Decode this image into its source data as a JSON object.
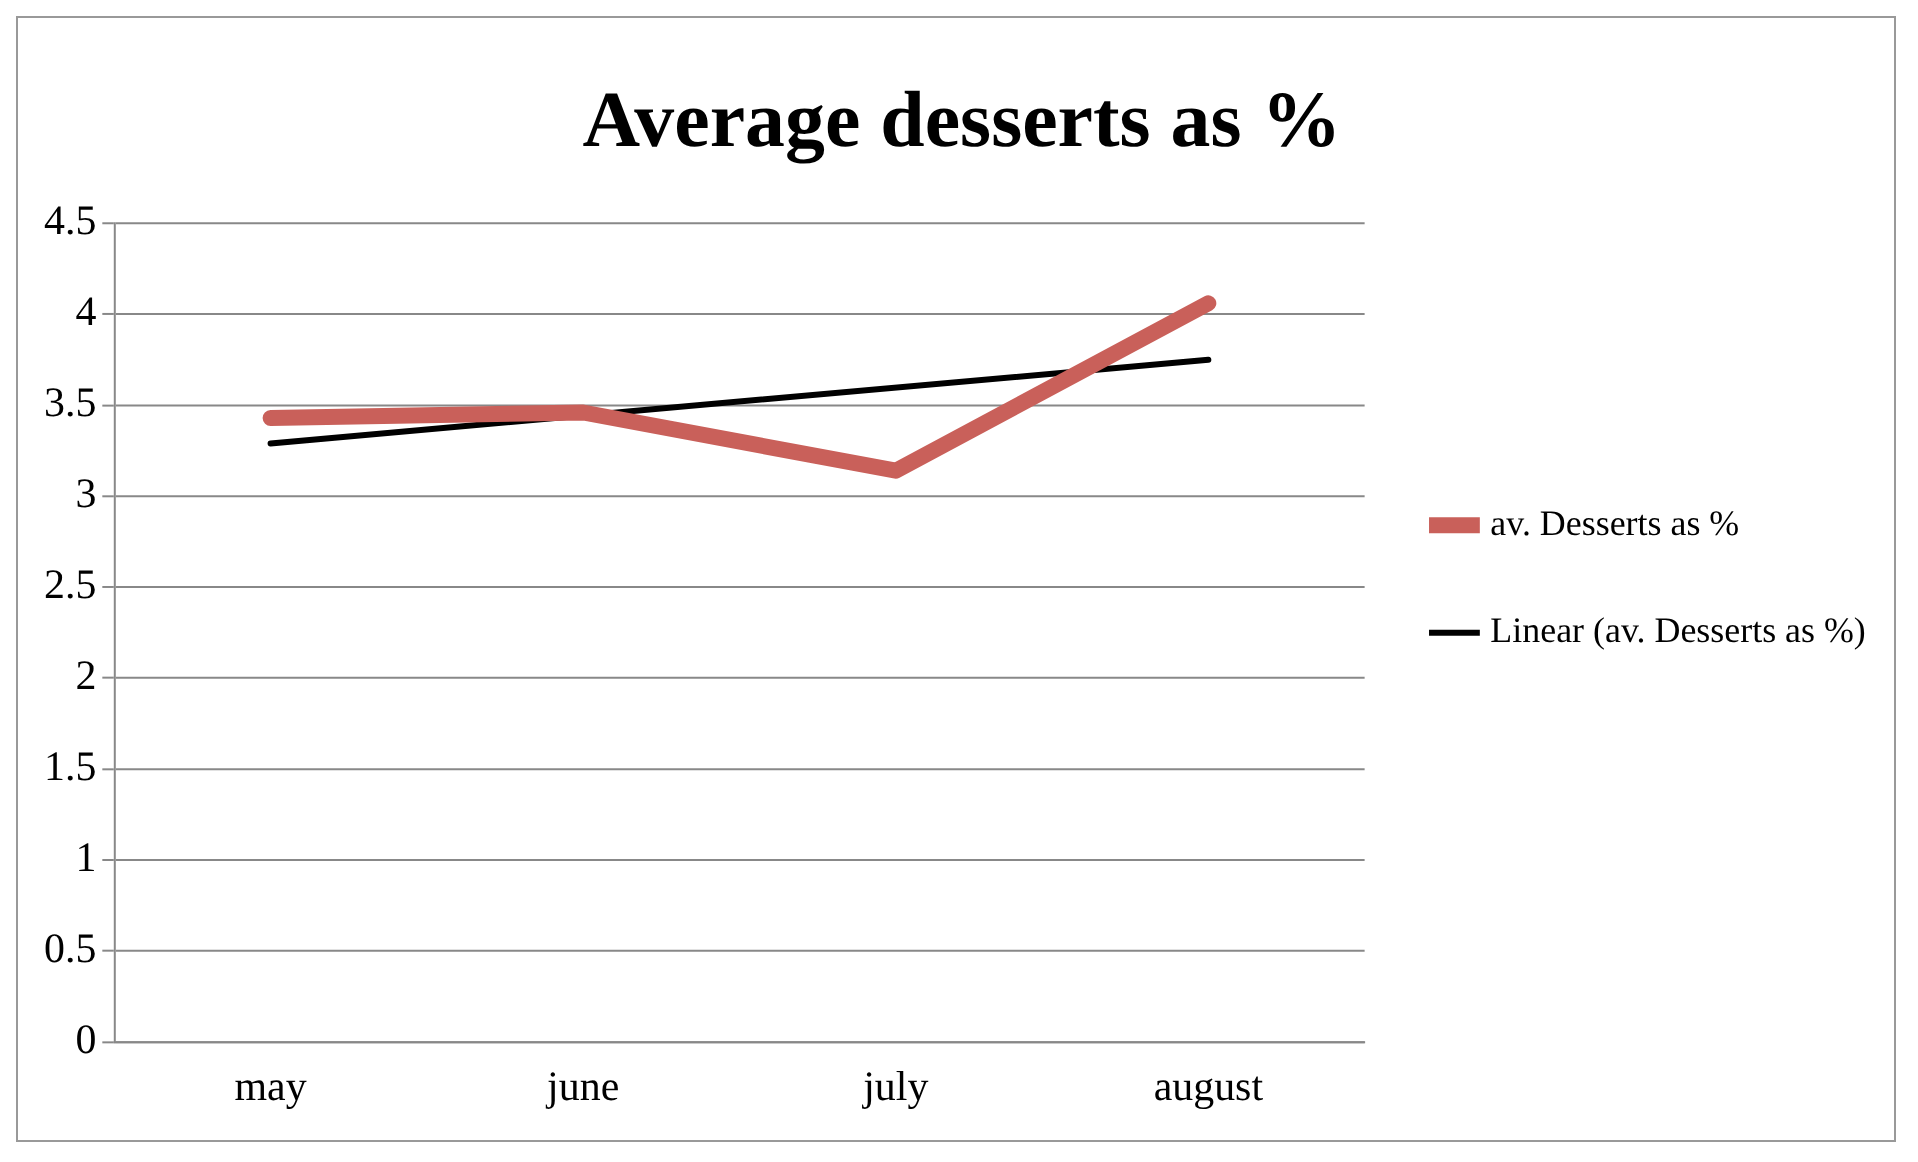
{
  "chart_data": {
    "type": "line",
    "title": "Average desserts as %",
    "categories": [
      "may",
      "june",
      "july",
      "august"
    ],
    "series": [
      {
        "name": "av. Desserts as %",
        "color": "#c9605a",
        "values": [
          3.43,
          3.46,
          3.14,
          4.06
        ]
      },
      {
        "name": "Linear (av. Desserts as %)",
        "type": "line",
        "color": "#000000",
        "x": [
          "may",
          "august"
        ],
        "values": [
          3.29,
          3.75
        ]
      }
    ],
    "ylim": [
      0,
      4.5
    ],
    "yticks": [
      0,
      0.5,
      1,
      1.5,
      2,
      2.5,
      3,
      3.5,
      4,
      4.5
    ],
    "grid": "y",
    "legend": "right",
    "marker": "none"
  }
}
